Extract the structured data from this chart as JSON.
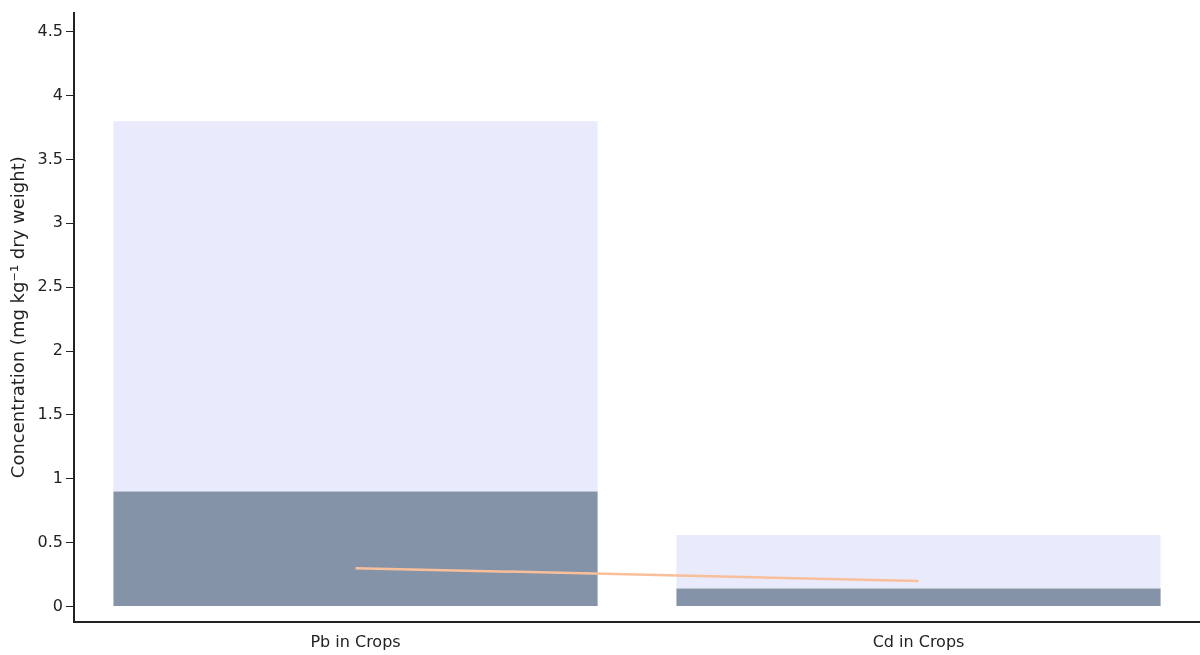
{
  "chart_data": {
    "type": "bar",
    "stacked": true,
    "ylabel": "Concentration (mg kg⁻¹ dry weight)",
    "categories": [
      "Pb in Crops",
      "Cd in Crops"
    ],
    "series": [
      {
        "color": "#8593a8",
        "values": [
          0.9,
          0.14
        ]
      },
      {
        "color": "#e9eafc",
        "values": [
          2.9,
          0.42
        ]
      },
      {
        "type": "line",
        "color": "#f9bf9a",
        "values": [
          0.3,
          0.2
        ],
        "marker": "none",
        "line_style": "solid"
      }
    ],
    "ylim": [
      -0.12,
      4.65
    ],
    "yticks": [
      0,
      0.5,
      1,
      1.5,
      2,
      2.5,
      3,
      3.5,
      4,
      4.5
    ],
    "grid": false,
    "legend": false
  }
}
